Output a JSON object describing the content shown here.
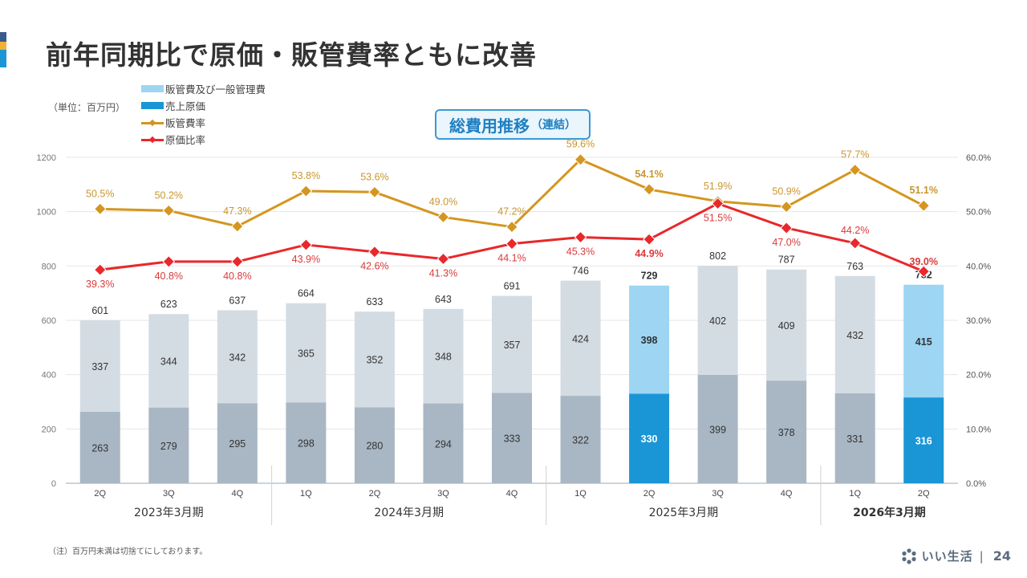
{
  "header": {
    "title": "前年同期比で原価・販管費率ともに改善",
    "accent_colors": [
      "#3b5a8c",
      "#f2b134",
      "#1a96d6"
    ]
  },
  "unit_label": "（単位：百万円）",
  "box_label": {
    "main": "総費用推移",
    "sub": "（連結）"
  },
  "note": "（注）百万円未満は切捨てにしております。",
  "footer": {
    "brand": "いい生活",
    "separator": "|",
    "page": "24"
  },
  "chart_data": {
    "type": "bar",
    "stacked": true,
    "title": "総費用推移（連結）",
    "categories": [
      "2Q",
      "3Q",
      "4Q",
      "1Q",
      "2Q",
      "3Q",
      "4Q",
      "1Q",
      "2Q",
      "3Q",
      "4Q",
      "1Q",
      "2Q"
    ],
    "groups": [
      {
        "label": "2023年3月期",
        "start": 0,
        "count": 3,
        "bold": false
      },
      {
        "label": "2024年3月期",
        "start": 3,
        "count": 4,
        "bold": false
      },
      {
        "label": "2025年3月期",
        "start": 7,
        "count": 4,
        "bold": false
      },
      {
        "label": "2026年3月期",
        "start": 11,
        "count": 2,
        "bold": true
      }
    ],
    "highlight": [
      8,
      12
    ],
    "series": [
      {
        "name": "売上原価",
        "kind": "bar",
        "axis": "left",
        "values": [
          263,
          279,
          295,
          298,
          280,
          294,
          333,
          322,
          330,
          399,
          378,
          331,
          316
        ],
        "color": "#a9b7c4",
        "highlight_color": "#1a96d6"
      },
      {
        "name": "販管費及び一般管理費",
        "kind": "bar",
        "axis": "left",
        "values": [
          337,
          344,
          342,
          365,
          352,
          348,
          357,
          424,
          398,
          402,
          409,
          432,
          415
        ],
        "color": "#d4dce3",
        "highlight_color": "#9dd5f3"
      },
      {
        "name": "販管費率",
        "kind": "line",
        "axis": "right",
        "values": [
          50.5,
          50.2,
          47.3,
          53.8,
          53.6,
          49.0,
          47.2,
          59.6,
          54.1,
          51.9,
          50.9,
          57.7,
          51.1
        ],
        "labels": [
          "50.5%",
          "50.2%",
          "47.3%",
          "53.8%",
          "53.6%",
          "49.0%",
          "47.2%",
          "59.6%",
          "54.1%",
          "51.9%",
          "50.9%",
          "57.7%",
          "51.1%"
        ],
        "color": "#d4961f",
        "label_color": "#c9962e"
      },
      {
        "name": "原価比率",
        "kind": "line",
        "axis": "right",
        "values": [
          39.3,
          40.8,
          40.8,
          43.9,
          42.6,
          41.3,
          44.1,
          45.3,
          44.9,
          51.5,
          47.0,
          44.2,
          39.0
        ],
        "labels": [
          "39.3%",
          "40.8%",
          "40.8%",
          "43.9%",
          "42.6%",
          "41.3%",
          "44.1%",
          "45.3%",
          "44.9%",
          "51.5%",
          "47.0%",
          "44.2%",
          "39.0%"
        ],
        "color": "#e8282b",
        "label_color": "#d93b3b"
      }
    ],
    "totals": [
      601,
      623,
      637,
      664,
      633,
      643,
      691,
      746,
      729,
      802,
      787,
      763,
      732
    ],
    "legend": [
      {
        "name": "販管費及び一般管理費",
        "type": "bar",
        "color": "#9dd5f3"
      },
      {
        "name": "売上原価",
        "type": "bar",
        "color": "#1a96d6"
      },
      {
        "name": "販管費率",
        "type": "line",
        "color": "#d4961f"
      },
      {
        "name": "原価比率",
        "type": "line",
        "color": "#e8282b"
      }
    ],
    "legend_position": "top-left",
    "y_left": {
      "min": 0,
      "max": 1200,
      "ticks": [
        "0",
        "200",
        "400",
        "600",
        "800",
        "1000",
        "1200"
      ],
      "tick_values": [
        0,
        200,
        400,
        600,
        800,
        1000,
        1200
      ]
    },
    "y_right": {
      "min": 0,
      "max": 60,
      "ticks": [
        "0.0%",
        "10.0%",
        "20.0%",
        "30.0%",
        "40.0%",
        "50.0%",
        "60.0%"
      ],
      "tick_values": [
        0,
        10,
        20,
        30,
        40,
        50,
        60
      ]
    },
    "grid": true,
    "xlabel": "",
    "ylabel": ""
  }
}
